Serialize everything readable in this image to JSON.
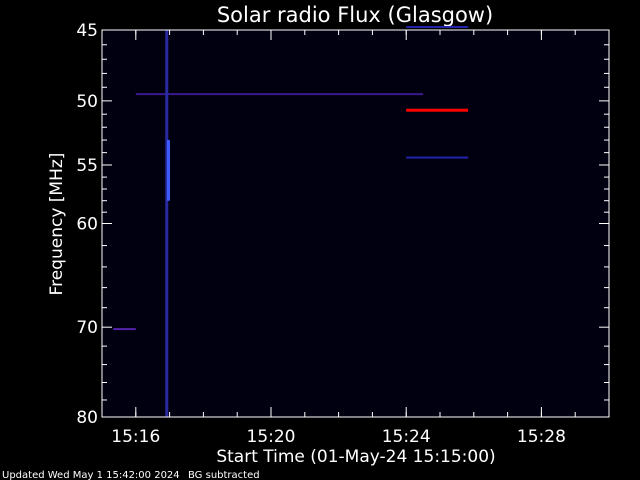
{
  "chart_data": {
    "type": "heatmap",
    "title": "Solar radio Flux (Glasgow)",
    "xlabel": "Start Time (01-May-24 15:15:00)",
    "ylabel": "Frequency [MHz]",
    "footer_left": "Updated Wed May  1 15:42:00 2024",
    "footer_right": "BG subtracted",
    "y_scale": "log",
    "ylim": [
      45,
      80
    ],
    "y_ticks": [
      45,
      50,
      55,
      60,
      70,
      80
    ],
    "y_minor_ticks": [
      46,
      47,
      48,
      49,
      51,
      52,
      53,
      54,
      56,
      57,
      58,
      59,
      62,
      64,
      66,
      68,
      72,
      74,
      76,
      78
    ],
    "xlim": [
      "15:15:00",
      "15:30:00"
    ],
    "x_ticks": [
      "15:16",
      "15:20",
      "15:24",
      "15:28"
    ],
    "background_color": "#000010",
    "features": [
      {
        "name": "horizontal band",
        "freq_mhz": 49.5,
        "start": "15:16:00",
        "end": "15:24:30",
        "color": "#3a1a8c"
      },
      {
        "name": "bright line",
        "freq_mhz": 50.7,
        "start": "15:24:00",
        "end": "15:25:50",
        "color": "#ff0000"
      },
      {
        "name": "faint line",
        "freq_mhz": 54.4,
        "start": "15:24:00",
        "end": "15:25:50",
        "color": "#2222aa"
      },
      {
        "name": "faint line",
        "freq_mhz": 44.8,
        "start": "15:24:00",
        "end": "15:25:50",
        "color": "#2222aa"
      },
      {
        "name": "band",
        "freq_mhz": 70.2,
        "start": "15:15:20",
        "end": "15:16:00",
        "color": "#5522aa"
      },
      {
        "name": "vertical burst",
        "time": "15:16:55",
        "freq_range": [
          45,
          80
        ],
        "color": "#2a2aa0"
      },
      {
        "name": "vertical burst",
        "time": "15:16:58",
        "freq_range": [
          53,
          58
        ],
        "color": "#3b5bff"
      }
    ],
    "colors": {
      "text": "#ffffff",
      "axes": "#ffffff",
      "background": "#000000",
      "accent": "#ff0000"
    }
  }
}
